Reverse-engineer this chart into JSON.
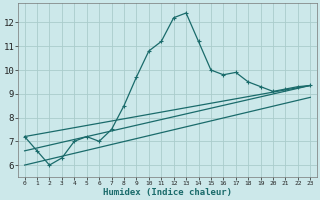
{
  "xlabel": "Humidex (Indice chaleur)",
  "bg_color": "#cce8ea",
  "grid_color": "#aacccc",
  "line_color": "#1a6b6b",
  "main_x": [
    0,
    1,
    2,
    3,
    4,
    5,
    6,
    7,
    8,
    9,
    10,
    11,
    12,
    13,
    14,
    15,
    16,
    17,
    18,
    19,
    20,
    21,
    22,
    23
  ],
  "main_y": [
    7.2,
    6.6,
    6.0,
    6.3,
    7.0,
    7.2,
    7.0,
    7.5,
    8.5,
    9.7,
    10.8,
    11.2,
    12.2,
    12.4,
    11.2,
    10.0,
    9.8,
    9.9,
    9.5,
    9.3,
    9.1,
    9.2,
    9.3,
    9.35
  ],
  "line2_x": [
    0,
    23
  ],
  "line2_y": [
    7.2,
    9.35
  ],
  "line3_x": [
    0,
    23
  ],
  "line3_y": [
    6.6,
    9.35
  ],
  "line4_x": [
    0,
    23
  ],
  "line4_y": [
    6.0,
    8.85
  ],
  "xlim": [
    -0.5,
    23.5
  ],
  "ylim": [
    5.5,
    12.8
  ],
  "yticks": [
    6,
    7,
    8,
    9,
    10,
    11,
    12
  ],
  "xticks": [
    0,
    1,
    2,
    3,
    4,
    5,
    6,
    7,
    8,
    9,
    10,
    11,
    12,
    13,
    14,
    15,
    16,
    17,
    18,
    19,
    20,
    21,
    22,
    23
  ]
}
